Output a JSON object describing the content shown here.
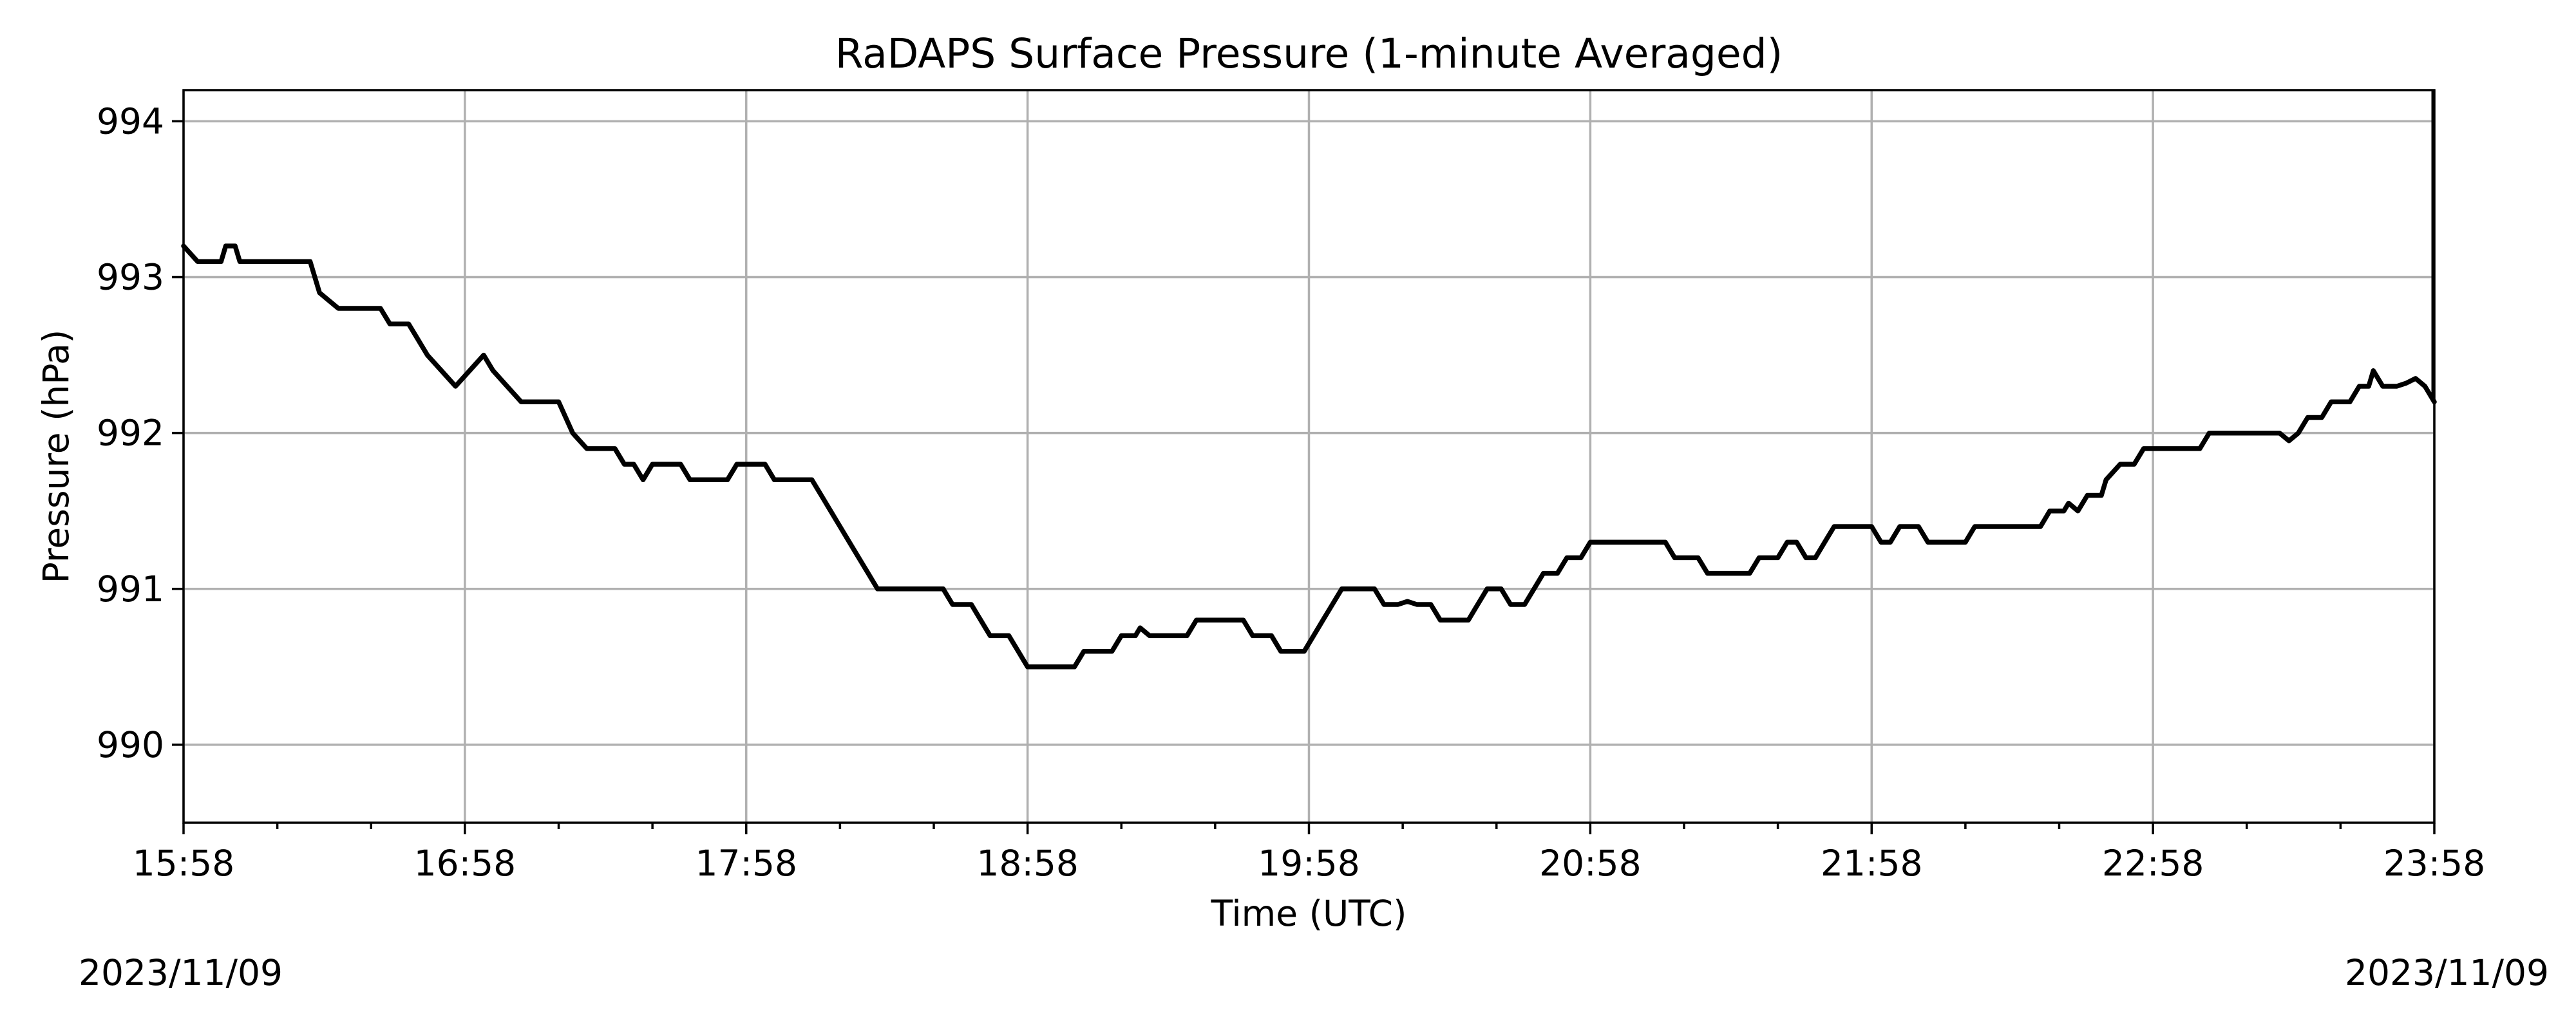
{
  "chart_data": {
    "type": "line",
    "title": "RaDAPS Surface Pressure (1-minute Averaged)",
    "xlabel": "Time (UTC)",
    "ylabel": "Pressure (hPa)",
    "xlim": [
      "15:58",
      "23:58"
    ],
    "ylim": [
      989.5,
      994.2
    ],
    "x_ticks": [
      "15:58",
      "16:58",
      "17:58",
      "18:58",
      "19:58",
      "20:58",
      "21:58",
      "22:58",
      "23:58"
    ],
    "y_ticks": [
      990,
      991,
      992,
      993,
      994
    ],
    "grid": true,
    "date_left": "2023/11/09",
    "date_right": "2023/11/09",
    "series": [
      {
        "color": "#000000",
        "points": [
          [
            "15:58",
            993.2
          ],
          [
            "16:01",
            993.1
          ],
          [
            "16:06",
            993.1
          ],
          [
            "16:07",
            993.2
          ],
          [
            "16:09",
            993.2
          ],
          [
            "16:10",
            993.1
          ],
          [
            "16:25",
            993.1
          ],
          [
            "16:27",
            992.9
          ],
          [
            "16:31",
            992.8
          ],
          [
            "16:40",
            992.8
          ],
          [
            "16:42",
            992.7
          ],
          [
            "16:46",
            992.7
          ],
          [
            "16:48",
            992.6
          ],
          [
            "16:50",
            992.5
          ],
          [
            "16:53",
            992.4
          ],
          [
            "16:56",
            992.3
          ],
          [
            "16:59",
            992.4
          ],
          [
            "17:02",
            992.5
          ],
          [
            "17:04",
            992.4
          ],
          [
            "17:07",
            992.3
          ],
          [
            "17:10",
            992.2
          ],
          [
            "17:18",
            992.2
          ],
          [
            "17:21",
            992.0
          ],
          [
            "17:24",
            991.9
          ],
          [
            "17:30",
            991.9
          ],
          [
            "17:32",
            991.8
          ],
          [
            "17:34",
            991.8
          ],
          [
            "17:36",
            991.7
          ],
          [
            "17:38",
            991.8
          ],
          [
            "17:44",
            991.8
          ],
          [
            "17:46",
            991.7
          ],
          [
            "17:54",
            991.7
          ],
          [
            "17:56",
            991.8
          ],
          [
            "18:02",
            991.8
          ],
          [
            "18:04",
            991.7
          ],
          [
            "18:12",
            991.7
          ],
          [
            "18:14",
            991.6
          ],
          [
            "18:16",
            991.5
          ],
          [
            "18:18",
            991.4
          ],
          [
            "18:20",
            991.3
          ],
          [
            "18:22",
            991.2
          ],
          [
            "18:24",
            991.1
          ],
          [
            "18:26",
            991.0
          ],
          [
            "18:40",
            991.0
          ],
          [
            "18:42",
            990.9
          ],
          [
            "18:46",
            990.9
          ],
          [
            "18:48",
            990.8
          ],
          [
            "18:50",
            990.7
          ],
          [
            "18:54",
            990.7
          ],
          [
            "18:56",
            990.6
          ],
          [
            "18:58",
            990.5
          ],
          [
            "19:08",
            990.5
          ],
          [
            "19:10",
            990.6
          ],
          [
            "19:16",
            990.6
          ],
          [
            "19:18",
            990.7
          ],
          [
            "19:21",
            990.7
          ],
          [
            "19:22",
            990.75
          ],
          [
            "19:24",
            990.7
          ],
          [
            "19:32",
            990.7
          ],
          [
            "19:34",
            990.8
          ],
          [
            "19:44",
            990.8
          ],
          [
            "19:46",
            990.7
          ],
          [
            "19:50",
            990.7
          ],
          [
            "19:52",
            990.6
          ],
          [
            "19:55",
            990.6
          ],
          [
            "19:57",
            990.6
          ],
          [
            "19:59",
            990.7
          ],
          [
            "20:01",
            990.8
          ],
          [
            "20:03",
            990.9
          ],
          [
            "20:05",
            991.0
          ],
          [
            "20:12",
            991.0
          ],
          [
            "20:14",
            990.9
          ],
          [
            "20:17",
            990.9
          ],
          [
            "20:19",
            990.92
          ],
          [
            "20:21",
            990.9
          ],
          [
            "20:24",
            990.9
          ],
          [
            "20:26",
            990.8
          ],
          [
            "20:32",
            990.8
          ],
          [
            "20:34",
            990.9
          ],
          [
            "20:36",
            991.0
          ],
          [
            "20:39",
            991.0
          ],
          [
            "20:41",
            990.9
          ],
          [
            "20:44",
            990.9
          ],
          [
            "20:46",
            991.0
          ],
          [
            "20:48",
            991.1
          ],
          [
            "20:51",
            991.1
          ],
          [
            "20:53",
            991.2
          ],
          [
            "20:56",
            991.2
          ],
          [
            "20:58",
            991.3
          ],
          [
            "21:14",
            991.3
          ],
          [
            "21:16",
            991.2
          ],
          [
            "21:21",
            991.2
          ],
          [
            "21:23",
            991.1
          ],
          [
            "21:32",
            991.1
          ],
          [
            "21:34",
            991.2
          ],
          [
            "21:38",
            991.2
          ],
          [
            "21:40",
            991.3
          ],
          [
            "21:42",
            991.3
          ],
          [
            "21:44",
            991.2
          ],
          [
            "21:46",
            991.2
          ],
          [
            "21:48",
            991.3
          ],
          [
            "21:50",
            991.4
          ],
          [
            "21:58",
            991.4
          ],
          [
            "22:00",
            991.3
          ],
          [
            "22:02",
            991.3
          ],
          [
            "22:04",
            991.4
          ],
          [
            "22:08",
            991.4
          ],
          [
            "22:10",
            991.3
          ],
          [
            "22:18",
            991.3
          ],
          [
            "22:20",
            991.4
          ],
          [
            "22:34",
            991.4
          ],
          [
            "22:36",
            991.5
          ],
          [
            "22:39",
            991.5
          ],
          [
            "22:40",
            991.55
          ],
          [
            "22:42",
            991.5
          ],
          [
            "22:44",
            991.6
          ],
          [
            "22:47",
            991.6
          ],
          [
            "22:48",
            991.7
          ],
          [
            "22:51",
            991.8
          ],
          [
            "22:54",
            991.8
          ],
          [
            "22:56",
            991.9
          ],
          [
            "23:08",
            991.9
          ],
          [
            "23:10",
            992.0
          ],
          [
            "23:17",
            992.0
          ],
          [
            "23:19",
            992.0
          ],
          [
            "23:25",
            992.0
          ],
          [
            "23:27",
            991.95
          ],
          [
            "23:29",
            992.0
          ],
          [
            "23:31",
            992.1
          ],
          [
            "23:34",
            992.1
          ],
          [
            "23:36",
            992.2
          ],
          [
            "23:40",
            992.2
          ],
          [
            "23:42",
            992.3
          ],
          [
            "23:44",
            992.3
          ],
          [
            "23:45",
            992.4
          ],
          [
            "23:47",
            992.3
          ],
          [
            "23:50",
            992.3
          ],
          [
            "23:52",
            992.32
          ],
          [
            "23:54",
            992.35
          ],
          [
            "23:56",
            992.3
          ],
          [
            "23:58",
            992.2
          ]
        ]
      }
    ]
  }
}
